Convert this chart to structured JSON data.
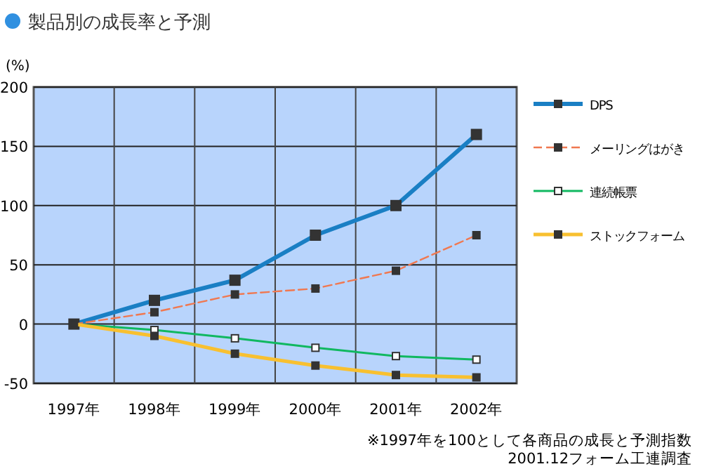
{
  "chart_data": {
    "type": "line",
    "title": "製品別の成長率と予測",
    "ylabel": "(%)",
    "categories": [
      "1997年",
      "1998年",
      "1999年",
      "2000年",
      "2001年",
      "2002年"
    ],
    "series": [
      {
        "name": "DPS",
        "color": "#1a7fc4",
        "values": [
          0,
          20,
          37,
          75,
          100,
          160
        ]
      },
      {
        "name": "メーリングはがき",
        "color": "#f07850",
        "line_style": "dashed",
        "values": [
          0,
          10,
          25,
          30,
          45,
          75
        ]
      },
      {
        "name": "連続帳票",
        "color": "#10b860",
        "values": [
          0,
          -5,
          -12,
          -20,
          -27,
          -30
        ]
      },
      {
        "name": "ストックフォーム",
        "color": "#f8c030",
        "values": [
          0,
          -10,
          -25,
          -35,
          -43,
          -45
        ]
      }
    ],
    "ylim": [
      -50,
      200
    ],
    "yticks": [
      -50,
      0,
      50,
      100,
      150,
      200
    ],
    "grid": true,
    "legend": "right",
    "marker": "square",
    "line_style": "solid",
    "annotations": [
      "※1997年を100として各商品の成長と予測指数",
      "2001.12フォーム工連調査"
    ]
  }
}
